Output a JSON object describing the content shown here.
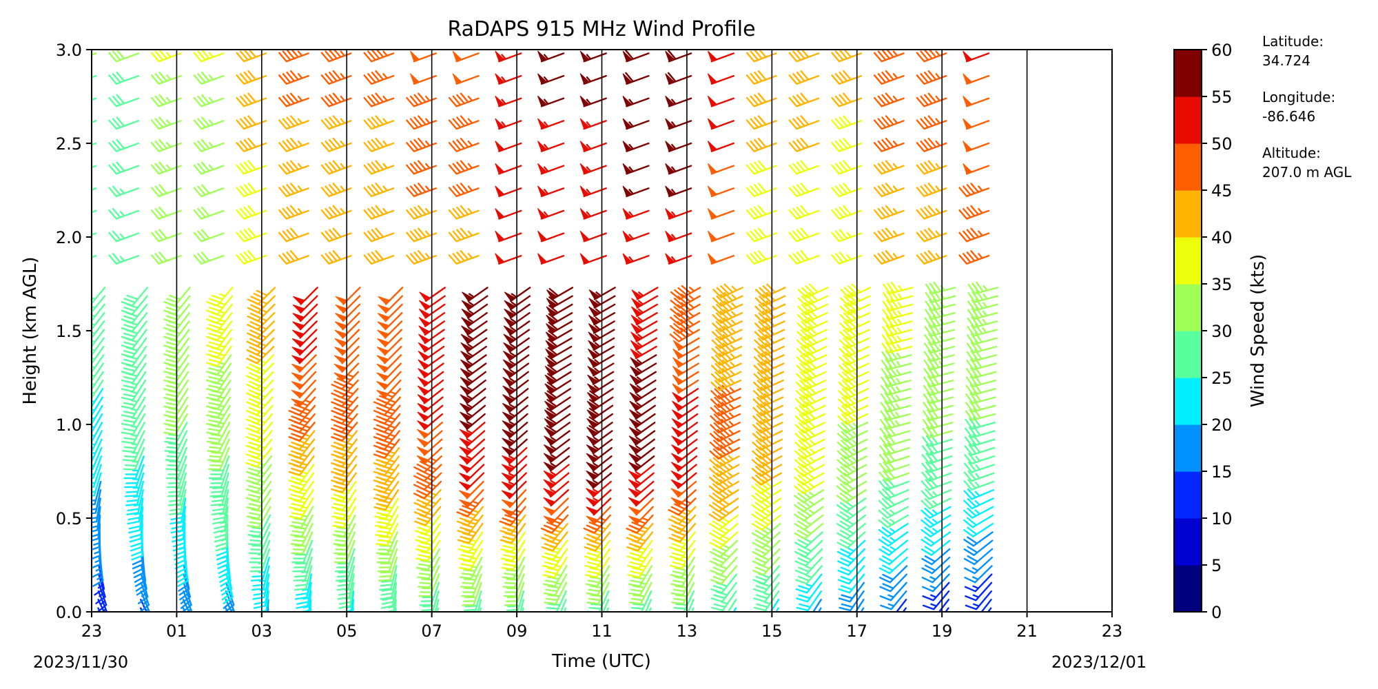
{
  "chart_data": {
    "type": "wind-barb profile",
    "title": "RaDAPS 915 MHz Wind Profile",
    "xlabel": "Time (UTC)",
    "ylabel": "Height (km AGL)",
    "x_tick_labels": [
      "23",
      "01",
      "03",
      "05",
      "07",
      "09",
      "11",
      "13",
      "15",
      "17",
      "19",
      "21",
      "23"
    ],
    "x_range_hours_utc": [
      23,
      47
    ],
    "date_left": "2023/11/30",
    "date_right": "2023/12/01",
    "y_tick_labels": [
      "0.0",
      "0.5",
      "1.0",
      "1.5",
      "2.0",
      "2.5",
      "3.0"
    ],
    "ylim": [
      0,
      3.0
    ],
    "grid": "vertical lines at every 2-hour tick",
    "colorbar": {
      "label": "Wind Speed (kts)",
      "levels": [
        0,
        5,
        10,
        15,
        20,
        25,
        30,
        35,
        40,
        45,
        50,
        55,
        60
      ],
      "tick_labels": [
        "0",
        "5",
        "10",
        "15",
        "20",
        "25",
        "30",
        "35",
        "40",
        "45",
        "50",
        "55",
        "60"
      ],
      "colors": [
        "#00007f",
        "#0000d0",
        "#0028ff",
        "#0090ff",
        "#00f0ff",
        "#5aff9d",
        "#a0ff57",
        "#ecff0b",
        "#ffb400",
        "#ff5e00",
        "#e80c00",
        "#7f0000"
      ]
    },
    "site": {
      "latitude_label": "Latitude:",
      "latitude": "34.724",
      "longitude_label": "Longitude:",
      "longitude": "-86.646",
      "altitude_label": "Altitude:",
      "altitude": "207.0 m AGL"
    },
    "low_mode": {
      "top_km": 1.75,
      "speed_profiles_kts": [
        [
          12,
          16,
          20,
          24,
          26,
          26
        ],
        [
          14,
          19,
          24,
          26,
          28,
          29
        ],
        [
          15,
          22,
          26,
          30,
          31,
          31
        ],
        [
          16,
          24,
          28,
          33,
          35,
          36
        ],
        [
          18,
          26,
          33,
          38,
          40,
          41
        ],
        [
          20,
          28,
          38,
          46,
          50,
          50
        ],
        [
          22,
          30,
          40,
          46,
          48,
          48
        ],
        [
          24,
          32,
          42,
          47,
          48,
          48
        ],
        [
          26,
          34,
          46,
          50,
          52,
          52
        ],
        [
          26,
          36,
          50,
          55,
          55,
          55
        ],
        [
          26,
          36,
          52,
          57,
          57,
          57
        ],
        [
          26,
          38,
          54,
          58,
          58,
          58
        ],
        [
          26,
          38,
          55,
          58,
          57,
          56
        ],
        [
          26,
          38,
          54,
          57,
          55,
          53
        ],
        [
          26,
          36,
          50,
          52,
          48,
          46
        ],
        [
          24,
          34,
          44,
          46,
          44,
          43
        ],
        [
          22,
          32,
          40,
          42,
          42,
          42
        ],
        [
          18,
          28,
          36,
          38,
          39,
          40
        ],
        [
          15,
          24,
          32,
          35,
          37,
          38
        ],
        [
          12,
          22,
          30,
          33,
          35,
          36
        ],
        [
          10,
          20,
          28,
          31,
          33,
          35
        ],
        [
          10,
          18,
          26,
          30,
          32,
          34
        ]
      ],
      "direction_profiles_deg": [
        [
          150,
          175,
          195,
          210,
          215,
          220
        ],
        [
          180,
          200,
          215,
          220,
          225,
          225
        ],
        [
          190,
          210,
          225,
          230,
          235,
          235
        ],
        [
          200,
          215,
          230,
          235,
          240,
          240
        ],
        [
          210,
          225,
          240,
          245,
          245,
          245
        ],
        [
          215,
          230,
          250,
          255,
          255,
          255
        ]
      ]
    },
    "high_mode": {
      "height_range_km": [
        1.9,
        3.0
      ],
      "speeds_kts": [
        28,
        33,
        40,
        44,
        44,
        46,
        52,
        54,
        56,
        50,
        40,
        39,
        45,
        48
      ]
    }
  }
}
